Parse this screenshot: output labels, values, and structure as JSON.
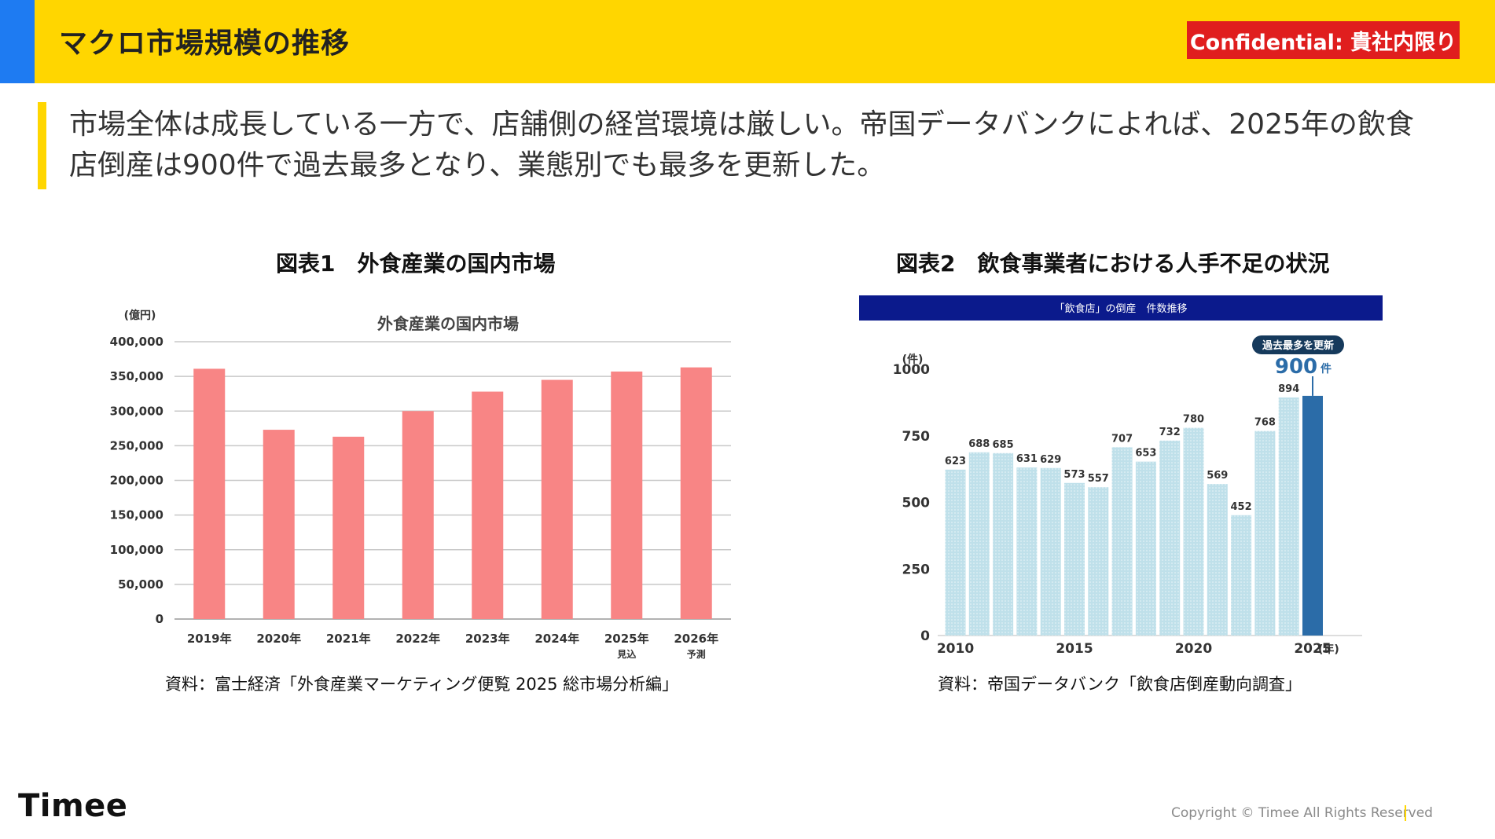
{
  "header": {
    "title": "マクロ市場規模の推移",
    "confidential": "Confidential: 貴社内限り",
    "accent_color": "#FFD600",
    "side_color": "#1E7BF2",
    "badge_color": "#E01E1E"
  },
  "lead": {
    "line1": "市場全体は成長している一方で、店舗側の経営環境は厳しい。帝国データバンクによれば、2025年の飲食",
    "line2": "店倒産は900件で過去最多となり、業態別でも最多を更新した。"
  },
  "figures": {
    "fig1_title": "図表1　外食産業の国内市場",
    "fig1_source": "資料：富士経済「外食産業マーケティング便覧 2025 総市場分析編」",
    "fig2_title": "図表2　飲食事業者における人手不足の状況",
    "fig2_source": "資料：帝国データバンク「飲食店倒産動向調査」"
  },
  "chart_data": [
    {
      "type": "bar",
      "title": "外食産業の国内市場",
      "ylabel": "(億円)",
      "categories": [
        "2019年",
        "2020年",
        "2021年",
        "2022年",
        "2023年",
        "2024年",
        "2025年",
        "2026年"
      ],
      "category_notes": [
        "",
        "",
        "",
        "",
        "",
        "",
        "見込",
        "予測"
      ],
      "values": [
        361000,
        273000,
        263000,
        300000,
        328000,
        345000,
        357000,
        363000
      ],
      "ylim": [
        0,
        400000
      ],
      "yticks": [
        0,
        50000,
        100000,
        150000,
        200000,
        250000,
        300000,
        350000,
        400000
      ],
      "ytick_labels": [
        "0",
        "50,000",
        "100,000",
        "150,000",
        "200,000",
        "250,000",
        "300,000",
        "350,000",
        "400,000"
      ],
      "grid": true,
      "bar_color": "#F88585"
    },
    {
      "type": "bar",
      "title": "「飲食店」の倒産　件数推移",
      "title_band_color": "#0B1A8C",
      "ylabel": "(件)",
      "xlabel": "(年)",
      "x": [
        2010,
        2011,
        2012,
        2013,
        2014,
        2015,
        2016,
        2017,
        2018,
        2019,
        2020,
        2021,
        2022,
        2023,
        2024,
        2025
      ],
      "values": [
        623,
        688,
        685,
        631,
        629,
        573,
        557,
        707,
        653,
        732,
        780,
        569,
        452,
        768,
        894,
        900
      ],
      "data_labels": [
        "623",
        "688",
        "685",
        "631",
        "629",
        "573",
        "557",
        "707",
        "653",
        "732",
        "780",
        "569",
        "452",
        "768",
        "894",
        ""
      ],
      "xtick_labels": [
        "2010",
        "2015",
        "2020",
        "2025"
      ],
      "xtick_years": [
        2010,
        2015,
        2020,
        2025
      ],
      "ylim": [
        0,
        1000
      ],
      "yticks": [
        0,
        250,
        500,
        750,
        1000
      ],
      "ytick_labels": [
        "0",
        "250",
        "500",
        "750",
        "1000"
      ],
      "grid": false,
      "bar_color": "#BFE0EA",
      "highlight_color": "#2B6CA8",
      "callout_badge": "過去最多を更新",
      "callout_value": "900",
      "callout_unit": "件"
    }
  ],
  "footer": {
    "logo": "Timee",
    "copyright": "Copyright © Timee All Rights Reserved"
  }
}
